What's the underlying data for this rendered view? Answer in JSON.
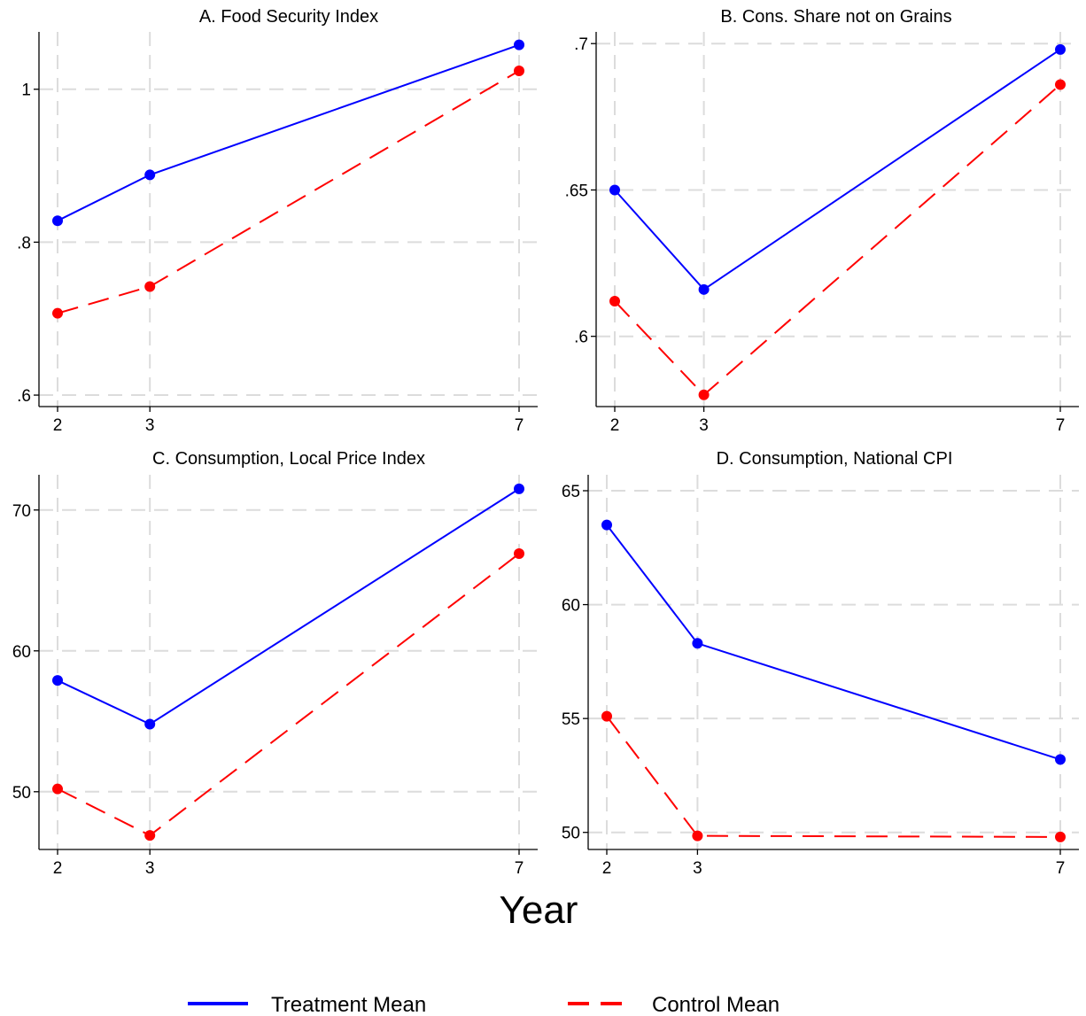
{
  "xlabel": "Year",
  "legend": [
    {
      "label": "Treatment Mean",
      "color": "#0000ff",
      "dash": "solid"
    },
    {
      "label": "Control Mean",
      "color": "#ff0000",
      "dash": "dashed"
    }
  ],
  "chart_data": [
    {
      "type": "line",
      "title": "A. Food Security Index",
      "x": [
        2,
        3,
        7
      ],
      "xticks": [
        "2",
        "3",
        "7"
      ],
      "ylim": [
        0.585,
        1.075
      ],
      "yticks": [
        0.6,
        0.8,
        1.0
      ],
      "ytick_labels": [
        ".6",
        ".8",
        "1"
      ],
      "grid": true,
      "series": [
        {
          "name": "Treatment Mean",
          "color": "#0000ff",
          "dash": "solid",
          "values": [
            0.828,
            0.888,
            1.058
          ]
        },
        {
          "name": "Control Mean",
          "color": "#ff0000",
          "dash": "dashed",
          "values": [
            0.707,
            0.742,
            1.024
          ]
        }
      ]
    },
    {
      "type": "line",
      "title": "B. Cons. Share not on Grains",
      "x": [
        2,
        3,
        7
      ],
      "xticks": [
        "2",
        "3",
        "7"
      ],
      "ylim": [
        0.576,
        0.704
      ],
      "yticks": [
        0.6,
        0.65,
        0.7
      ],
      "ytick_labels": [
        ".6",
        ".65",
        ".7"
      ],
      "grid": true,
      "series": [
        {
          "name": "Treatment Mean",
          "color": "#0000ff",
          "dash": "solid",
          "values": [
            0.65,
            0.616,
            0.698
          ]
        },
        {
          "name": "Control Mean",
          "color": "#ff0000",
          "dash": "dashed",
          "values": [
            0.612,
            0.58,
            0.686
          ]
        }
      ]
    },
    {
      "type": "line",
      "title": "C. Consumption, Local Price Index",
      "x": [
        2,
        3,
        7
      ],
      "xticks": [
        "2",
        "3",
        "7"
      ],
      "ylim": [
        45.9,
        72.5
      ],
      "yticks": [
        50,
        60,
        70
      ],
      "ytick_labels": [
        "50",
        "60",
        "70"
      ],
      "grid": true,
      "series": [
        {
          "name": "Treatment Mean",
          "color": "#0000ff",
          "dash": "solid",
          "values": [
            57.9,
            54.8,
            71.5
          ]
        },
        {
          "name": "Control Mean",
          "color": "#ff0000",
          "dash": "dashed",
          "values": [
            50.2,
            46.9,
            66.9
          ]
        }
      ]
    },
    {
      "type": "line",
      "title": "D. Consumption, National CPI",
      "x": [
        2,
        3,
        7
      ],
      "xticks": [
        "2",
        "3",
        "7"
      ],
      "ylim": [
        49.25,
        65.7
      ],
      "yticks": [
        50,
        55,
        60,
        65
      ],
      "ytick_labels": [
        "50",
        "55",
        "60",
        "65"
      ],
      "grid": true,
      "series": [
        {
          "name": "Treatment Mean",
          "color": "#0000ff",
          "dash": "solid",
          "values": [
            63.5,
            58.3,
            53.2
          ]
        },
        {
          "name": "Control Mean",
          "color": "#ff0000",
          "dash": "dashed",
          "values": [
            55.1,
            49.85,
            49.8
          ]
        }
      ]
    }
  ]
}
